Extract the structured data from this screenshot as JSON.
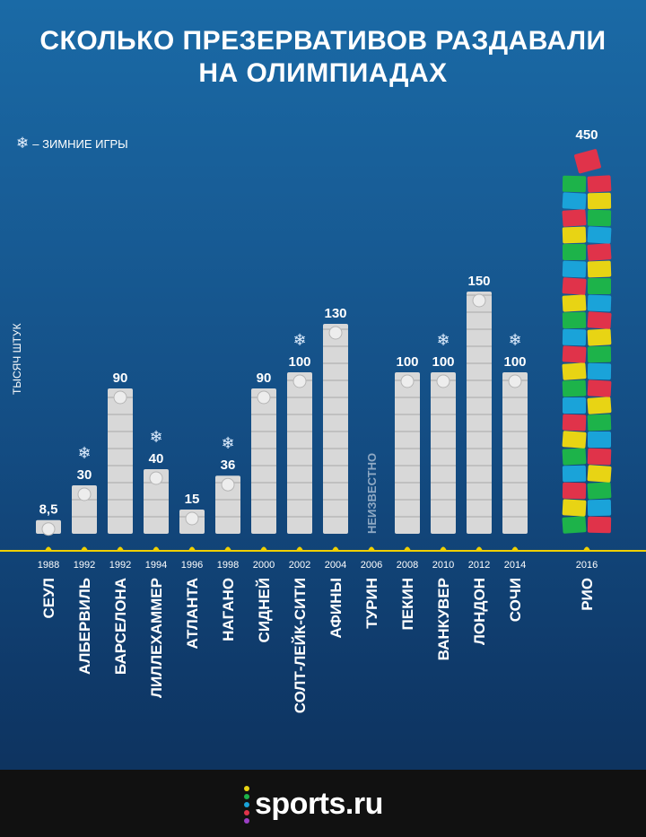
{
  "title": {
    "line1": "СКОЛЬКО ПРЕЗЕРВАТИВОВ РАЗДАВАЛИ",
    "line2": "НА ОЛИМПИАДАХ"
  },
  "legend": {
    "symbol": "❄",
    "text": "–  ЗИМНИЕ ИГРЫ"
  },
  "footer": {
    "logo_text": "sports.ru"
  },
  "colors": {
    "axis": "#f0d000",
    "silver": "#d8d8d8",
    "rio": [
      "#1db34a",
      "#e8d414",
      "#e0334a",
      "#1aa3d9"
    ]
  },
  "chart_data": {
    "type": "bar",
    "ylabel": "ТЫСЯЧ ШТУК",
    "unknown_label": "НЕИЗВЕСТНО",
    "ylim": [
      0,
      450
    ],
    "categories": [
      {
        "year": "1988",
        "city": "СЕУЛ",
        "value": 8.5,
        "label": "8,5",
        "winter": false
      },
      {
        "year": "1992",
        "city": "АЛБЕРВИЛЬ",
        "value": 30,
        "label": "30",
        "winter": true
      },
      {
        "year": "1992",
        "city": "БАРСЕЛОНА",
        "value": 90,
        "label": "90",
        "winter": false
      },
      {
        "year": "1994",
        "city": "ЛИЛЛЕХАММЕР",
        "value": 40,
        "label": "40",
        "winter": true
      },
      {
        "year": "1996",
        "city": "АТЛАНТА",
        "value": 15,
        "label": "15",
        "winter": false
      },
      {
        "year": "1998",
        "city": "НАГАНО",
        "value": 36,
        "label": "36",
        "winter": true
      },
      {
        "year": "2000",
        "city": "СИДНЕЙ",
        "value": 90,
        "label": "90",
        "winter": false
      },
      {
        "year": "2002",
        "city": "СОЛТ-ЛЕЙК-СИТИ",
        "value": 100,
        "label": "100",
        "winter": true
      },
      {
        "year": "2004",
        "city": "АФИНЫ",
        "value": 130,
        "label": "130",
        "winter": false
      },
      {
        "year": "2006",
        "city": "ТУРИН",
        "value": null,
        "label": "",
        "winter": true
      },
      {
        "year": "2008",
        "city": "ПЕКИН",
        "value": 100,
        "label": "100",
        "winter": false
      },
      {
        "year": "2010",
        "city": "ВАНКУВЕР",
        "value": 100,
        "label": "100",
        "winter": true
      },
      {
        "year": "2012",
        "city": "ЛОНДОН",
        "value": 150,
        "label": "150",
        "winter": false
      },
      {
        "year": "2014",
        "city": "СОЧИ",
        "value": 100,
        "label": "100",
        "winter": true
      },
      {
        "year": "2016",
        "city": "РИО",
        "value": 450,
        "label": "450",
        "winter": false
      }
    ]
  }
}
